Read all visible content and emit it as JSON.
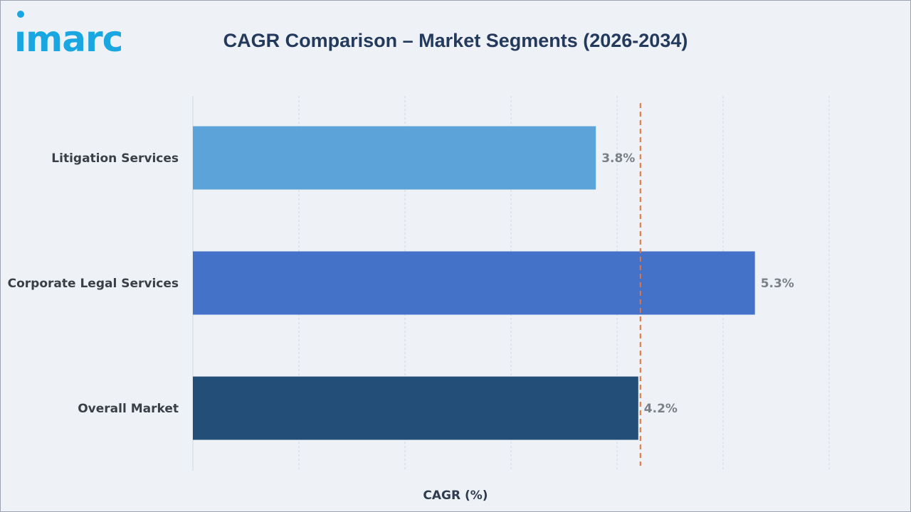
{
  "brand": {
    "logo_text": "imarc",
    "logo_color": "#1aa6e0"
  },
  "chart_data": {
    "type": "bar",
    "orientation": "horizontal",
    "title": "CAGR Comparison – Market Segments (2026-2034)",
    "xlabel": "CAGR (%)",
    "ylabel": "",
    "categories": [
      "Litigation Services",
      "Corporate Legal Services",
      "Overall Market"
    ],
    "values": [
      3.8,
      5.3,
      4.2
    ],
    "value_labels": [
      "3.8%",
      "5.3%",
      "4.2%"
    ],
    "bar_colors": [
      "#5ba3d9",
      "#4472c8",
      "#234e78"
    ],
    "reference_line": {
      "value": 4.2,
      "style": "dashed",
      "color": "#e8743b"
    },
    "xlim": [
      0,
      6
    ],
    "grid": true,
    "legend": "none"
  }
}
